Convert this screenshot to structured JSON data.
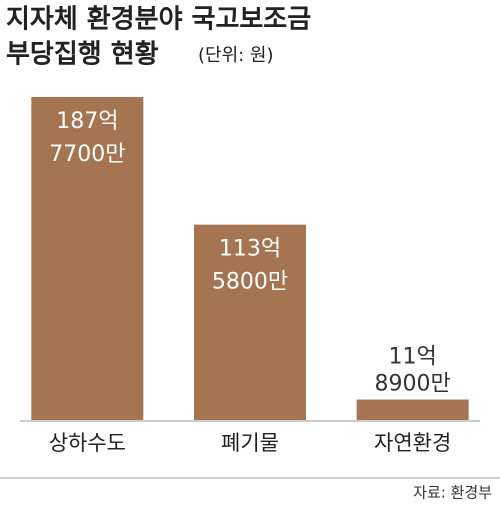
{
  "chart_data": {
    "type": "bar",
    "title": [
      "지자체 환경분야 국고보조금",
      "부당집행 현황"
    ],
    "unit_note": "(단위: 원)",
    "categories": [
      "상하수도",
      "폐기물",
      "자연환경"
    ],
    "values": [
      18777000000,
      11358000000,
      1189000000
    ],
    "value_labels": [
      [
        "187억",
        "7700만"
      ],
      [
        "113억",
        "5800만"
      ],
      [
        "11억",
        "8900만"
      ]
    ],
    "color": "#a57552",
    "ylim": [
      0,
      20000000000
    ],
    "source": "자료: 환경부"
  }
}
